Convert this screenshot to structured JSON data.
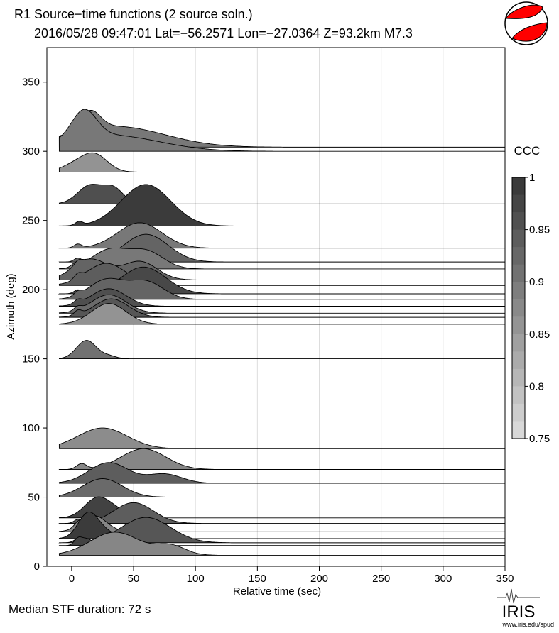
{
  "title_line1": "R1 Source−time functions (2 source soln.)",
  "title_line2": "2016/05/28 09:47:01   Lat=−56.2571 Lon=−27.0364   Z=93.2km   M7.3",
  "footer": "Median STF duration: 72 s",
  "logo": {
    "text": "IRIS",
    "url": "www.iris.edu/spud"
  },
  "colorbar": {
    "label": "CCC",
    "ticks": [
      "1",
      "0.95",
      "0.9",
      "0.85",
      "0.8",
      "0.75"
    ],
    "range": [
      0.75,
      1
    ]
  },
  "beachball": {
    "name": "focal mechanism",
    "color": "#ff0000"
  },
  "chart_data": {
    "type": "area",
    "title": "R1 Source−time functions (2 source soln.)",
    "xlabel": "Relative time (sec)",
    "ylabel": "Azimuth (deg)",
    "xlim": [
      -20,
      350
    ],
    "ylim": [
      0,
      375
    ],
    "xticks": [
      "0",
      "50",
      "100",
      "150",
      "200",
      "250",
      "300",
      "350"
    ],
    "yticks": [
      "0",
      "50",
      "100",
      "150",
      "200",
      "250",
      "300",
      "350"
    ],
    "grid": "vertical",
    "series": [
      {
        "azimuth": 303,
        "ccc": 0.9,
        "peaks": [
          [
            15,
            40,
            8
          ],
          [
            35,
            45,
            40
          ]
        ]
      },
      {
        "azimuth": 300,
        "ccc": 0.9,
        "peaks": [
          [
            10,
            60,
            10
          ],
          [
            30,
            35,
            40
          ]
        ]
      },
      {
        "azimuth": 285,
        "ccc": 0.86,
        "peaks": [
          [
            6,
            20,
            12
          ],
          [
            20,
            30,
            10
          ]
        ]
      },
      {
        "azimuth": 262,
        "ccc": 0.96,
        "peaks": [
          [
            15,
            40,
            10
          ],
          [
            34,
            32,
            8
          ]
        ]
      },
      {
        "azimuth": 246,
        "ccc": 0.99,
        "peaks": [
          [
            6,
            8,
            3
          ],
          [
            60,
            90,
            20
          ]
        ]
      },
      {
        "azimuth": 230,
        "ccc": 0.9,
        "peaks": [
          [
            5,
            8,
            3
          ],
          [
            55,
            55,
            18
          ]
        ]
      },
      {
        "azimuth": 220,
        "ccc": 0.93,
        "peaks": [
          [
            5,
            8,
            3
          ],
          [
            60,
            60,
            18
          ]
        ]
      },
      {
        "azimuth": 215,
        "ccc": 0.9,
        "peaks": [
          [
            3,
            8,
            3
          ],
          [
            30,
            40,
            14
          ],
          [
            60,
            38,
            14
          ]
        ]
      },
      {
        "azimuth": 207,
        "ccc": 0.93,
        "peaks": [
          [
            5,
            8,
            3
          ],
          [
            15,
            45,
            14
          ],
          [
            55,
            40,
            14
          ]
        ]
      },
      {
        "azimuth": 203,
        "ccc": 0.94,
        "peaks": [
          [
            5,
            10,
            3
          ],
          [
            28,
            48,
            16
          ]
        ]
      },
      {
        "azimuth": 197,
        "ccc": 0.97,
        "peaks": [
          [
            5,
            8,
            3
          ],
          [
            58,
            58,
            18
          ]
        ]
      },
      {
        "azimuth": 193,
        "ccc": 0.93,
        "peaks": [
          [
            5,
            8,
            3
          ],
          [
            28,
            42,
            14
          ],
          [
            60,
            38,
            14
          ]
        ]
      },
      {
        "azimuth": 188,
        "ccc": 0.96,
        "peaks": [
          [
            5,
            8,
            3
          ],
          [
            30,
            38,
            14
          ]
        ]
      },
      {
        "azimuth": 183,
        "ccc": 0.92,
        "peaks": [
          [
            5,
            8,
            3
          ],
          [
            30,
            40,
            14
          ]
        ]
      },
      {
        "azimuth": 180,
        "ccc": 0.95,
        "peaks": [
          [
            5,
            10,
            3
          ],
          [
            32,
            40,
            14
          ]
        ]
      },
      {
        "azimuth": 175,
        "ccc": 0.86,
        "peaks": [
          [
            30,
            45,
            14
          ]
        ]
      },
      {
        "azimuth": 150,
        "ccc": 0.91,
        "peaks": [
          [
            12,
            40,
            8
          ],
          [
            30,
            6,
            6
          ]
        ]
      },
      {
        "azimuth": 85,
        "ccc": 0.87,
        "peaks": [
          [
            25,
            45,
            20
          ]
        ]
      },
      {
        "azimuth": 70,
        "ccc": 0.88,
        "peaks": [
          [
            8,
            12,
            4
          ],
          [
            58,
            45,
            18
          ]
        ]
      },
      {
        "azimuth": 60,
        "ccc": 0.94,
        "peaks": [
          [
            30,
            45,
            16
          ],
          [
            75,
            20,
            14
          ]
        ]
      },
      {
        "azimuth": 50,
        "ccc": 0.92,
        "peaks": [
          [
            25,
            40,
            16
          ]
        ]
      },
      {
        "azimuth": 35,
        "ccc": 0.98,
        "peaks": [
          [
            20,
            40,
            10
          ],
          [
            35,
            15,
            10
          ]
        ]
      },
      {
        "azimuth": 31,
        "ccc": 0.94,
        "peaks": [
          [
            5,
            8,
            3
          ],
          [
            50,
            45,
            16
          ]
        ]
      },
      {
        "azimuth": 25,
        "ccc": 0.88,
        "peaks": [
          [
            5,
            8,
            3
          ],
          [
            18,
            35,
            10
          ]
        ]
      },
      {
        "azimuth": 20,
        "ccc": 0.99,
        "peaks": [
          [
            13,
            50,
            8
          ],
          [
            25,
            15,
            10
          ]
        ]
      },
      {
        "azimuth": 17,
        "ccc": 0.95,
        "peaks": [
          [
            5,
            8,
            3
          ],
          [
            60,
            55,
            20
          ]
        ]
      },
      {
        "azimuth": 15,
        "ccc": 0.98,
        "peaks": [
          [
            5,
            12,
            3
          ],
          [
            12,
            15,
            5
          ]
        ]
      },
      {
        "azimuth": 8,
        "ccc": 0.88,
        "peaks": [
          [
            35,
            50,
            20
          ],
          [
            80,
            20,
            12
          ]
        ]
      }
    ]
  }
}
